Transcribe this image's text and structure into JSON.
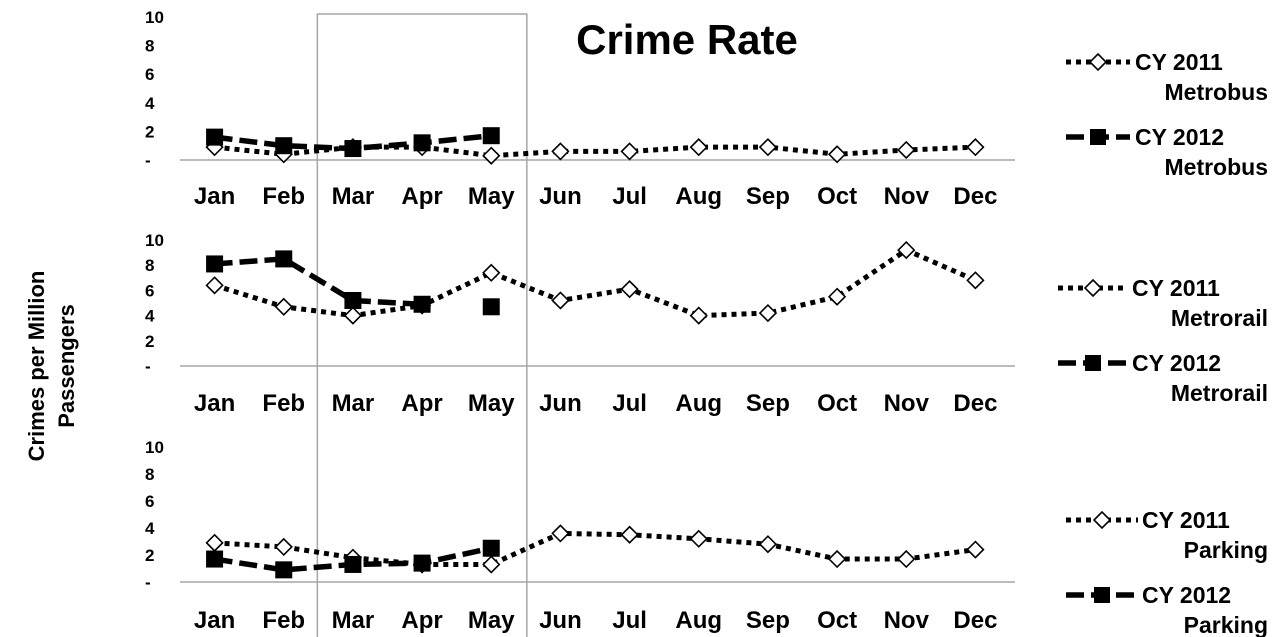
{
  "chart_data": {
    "type": "line",
    "title": "Crime Rate",
    "ylabel_lines": [
      "Crimes per Million",
      "Passengers"
    ],
    "categories": [
      "Jan",
      "Feb",
      "Mar",
      "Apr",
      "May",
      "Jun",
      "Jul",
      "Aug",
      "Sep",
      "Oct",
      "Nov",
      "Dec"
    ],
    "y_ticks": [
      "-",
      "2",
      "4",
      "6",
      "8",
      "10"
    ],
    "ylim": [
      0,
      10
    ],
    "highlight_range": [
      "Mar",
      "May"
    ],
    "panels": [
      {
        "series": [
          {
            "legend_top": "CY 2011",
            "legend_bottom": "Metrobus",
            "style": "dotted-diamond",
            "values": [
              0.9,
              0.4,
              0.9,
              0.9,
              0.3,
              0.6,
              0.6,
              0.9,
              0.9,
              0.4,
              0.7,
              0.9
            ]
          },
          {
            "legend_top": "CY 2012",
            "legend_bottom": "Metrobus",
            "style": "dashed-square",
            "values": [
              1.6,
              1.0,
              0.8,
              1.2,
              1.7,
              null,
              null,
              null,
              null,
              null,
              null,
              null
            ]
          }
        ]
      },
      {
        "series": [
          {
            "legend_top": "CY 2011",
            "legend_bottom": "Metrorail",
            "style": "dotted-diamond",
            "values": [
              6.4,
              4.7,
              4.0,
              4.8,
              7.4,
              5.2,
              6.1,
              4.0,
              4.2,
              5.5,
              9.2,
              6.8
            ]
          },
          {
            "legend_top": "CY 2012",
            "legend_bottom": "Metrorail",
            "style": "dashed-square",
            "values": [
              8.1,
              8.5,
              5.2,
              4.9,
              null,
              null,
              null,
              null,
              null,
              null,
              null,
              null
            ],
            "isolated_points": [
              {
                "month": "May",
                "value": 4.7
              }
            ]
          }
        ]
      },
      {
        "series": [
          {
            "legend_top": "CY 2011",
            "legend_bottom": "Parking",
            "style": "dotted-diamond",
            "values": [
              2.9,
              2.6,
              1.8,
              1.3,
              1.3,
              3.6,
              3.5,
              3.2,
              2.8,
              1.7,
              1.7,
              2.4
            ]
          },
          {
            "legend_top": "CY 2012",
            "legend_bottom": "Parking",
            "style": "dashed-square",
            "values": [
              1.7,
              0.9,
              1.3,
              1.4,
              2.5,
              null,
              null,
              null,
              null,
              null,
              null,
              null
            ]
          }
        ]
      }
    ]
  }
}
